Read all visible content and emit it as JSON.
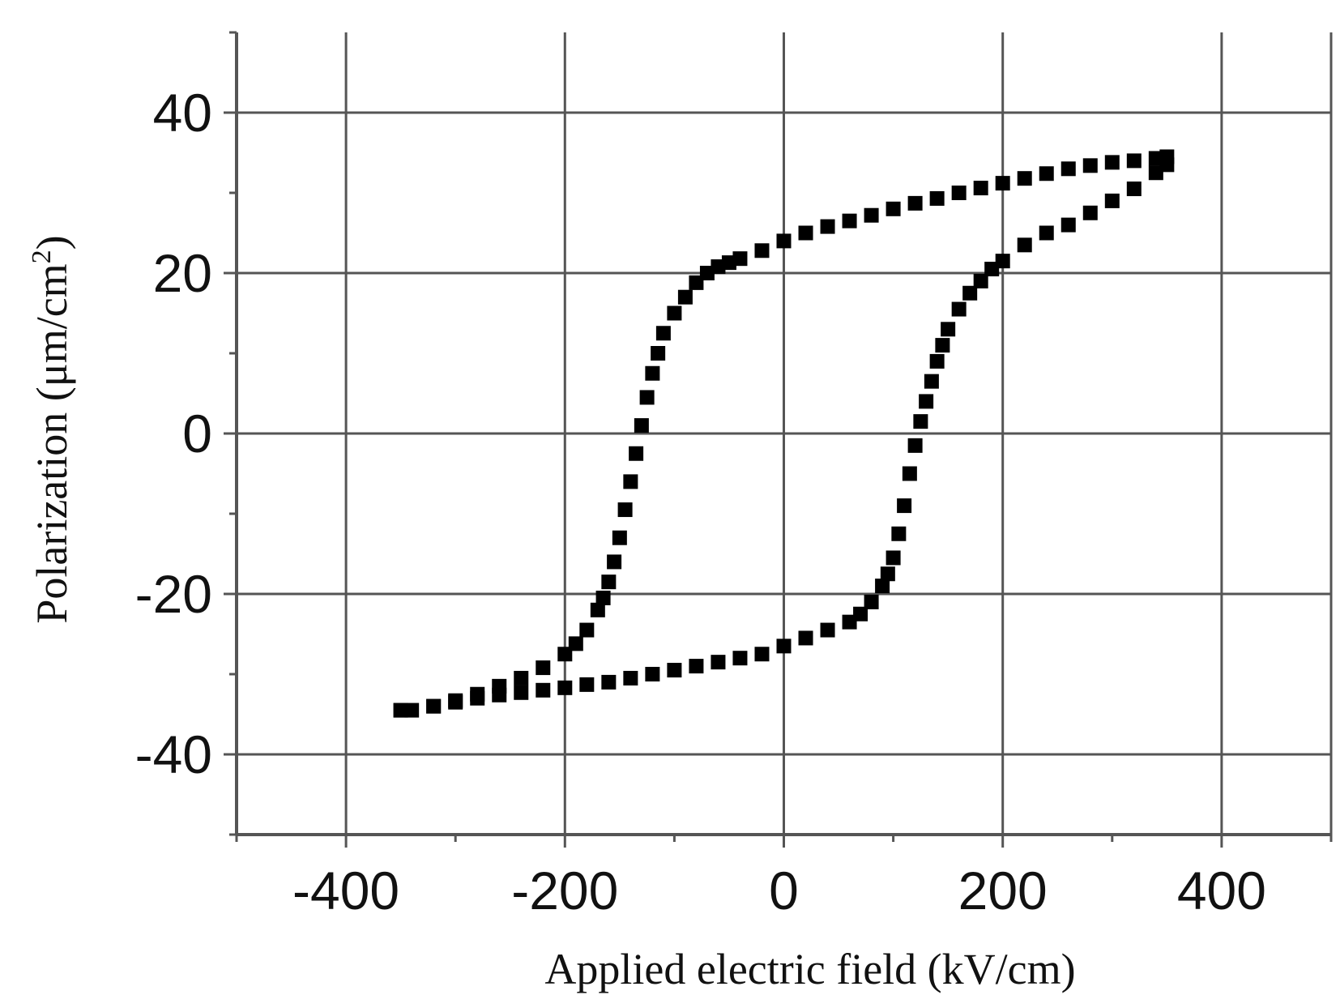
{
  "chart_data": {
    "type": "scatter",
    "title": "",
    "xlabel": "Applied electric field (kV/cm)",
    "ylabel": "Polarization (μm/cm²)",
    "ylabel_base": "Polarization (μm/cm",
    "ylabel_sup": "2",
    "ylabel_close": ")",
    "xlim": [
      -500,
      500
    ],
    "ylim": [
      -50,
      50
    ],
    "x_ticks": [
      -400,
      -200,
      0,
      200,
      400
    ],
    "x_tick_labels": [
      "-400",
      "-200",
      "0",
      "200",
      "400"
    ],
    "y_ticks": [
      -40,
      -20,
      0,
      20,
      40
    ],
    "y_tick_labels": [
      "-40",
      "-20",
      "0",
      "20",
      "40"
    ],
    "x_minor_step": 100,
    "y_minor_step": 10,
    "grid": true,
    "legend": "none",
    "marker": "square",
    "marker_color": "#000000",
    "series": [
      {
        "x": [
          -350,
          -320,
          -300,
          -280,
          -260,
          -240,
          -220,
          -200,
          -190,
          -180,
          -170,
          -165,
          -160,
          -155,
          -150,
          -145,
          -140,
          -135,
          -130,
          -125,
          -120,
          -115,
          -110,
          -100,
          -90,
          -80,
          -70,
          -60,
          -50,
          -40,
          -20,
          0,
          20,
          40,
          60,
          80,
          100,
          120,
          140,
          160,
          180,
          200,
          220,
          240,
          260,
          280,
          300,
          320,
          340,
          350
        ],
        "y": [
          -34.5,
          -34,
          -33.3,
          -32.5,
          -31.5,
          -30.5,
          -29.2,
          -27.5,
          -26.2,
          -24.5,
          -22,
          -20.5,
          -18.5,
          -16,
          -13,
          -9.5,
          -6,
          -2.5,
          1,
          4.5,
          7.5,
          10,
          12.5,
          15,
          17,
          18.8,
          20,
          20.8,
          21.3,
          21.8,
          22.8,
          24,
          25,
          25.8,
          26.5,
          27.2,
          28,
          28.7,
          29.3,
          30,
          30.6,
          31.2,
          31.8,
          32.4,
          33,
          33.4,
          33.8,
          34,
          34.3,
          34.5
        ]
      },
      {
        "x": [
          350,
          340,
          320,
          300,
          280,
          260,
          240,
          220,
          200,
          190,
          180,
          170,
          160,
          150,
          145,
          140,
          135,
          130,
          125,
          120,
          115,
          110,
          105,
          100,
          95,
          90,
          80,
          70,
          60,
          40,
          20,
          0,
          -20,
          -40,
          -60,
          -80,
          -100,
          -120,
          -140,
          -160,
          -180,
          -200,
          -220,
          -240,
          -260,
          -280,
          -300,
          -320,
          -340,
          -350
        ],
        "y": [
          33.5,
          32.5,
          30.5,
          29,
          27.5,
          26,
          25,
          23.5,
          21.5,
          20.5,
          19,
          17.5,
          15.5,
          13,
          11,
          9,
          6.5,
          4,
          1.5,
          -1.5,
          -5,
          -9,
          -12.5,
          -15.5,
          -17.5,
          -19,
          -21,
          -22.5,
          -23.5,
          -24.5,
          -25.5,
          -26.5,
          -27.5,
          -28,
          -28.5,
          -29,
          -29.5,
          -30,
          -30.5,
          -31,
          -31.3,
          -31.7,
          -32,
          -32.3,
          -32.6,
          -33,
          -33.5,
          -34,
          -34.5,
          -34.5
        ]
      }
    ]
  }
}
